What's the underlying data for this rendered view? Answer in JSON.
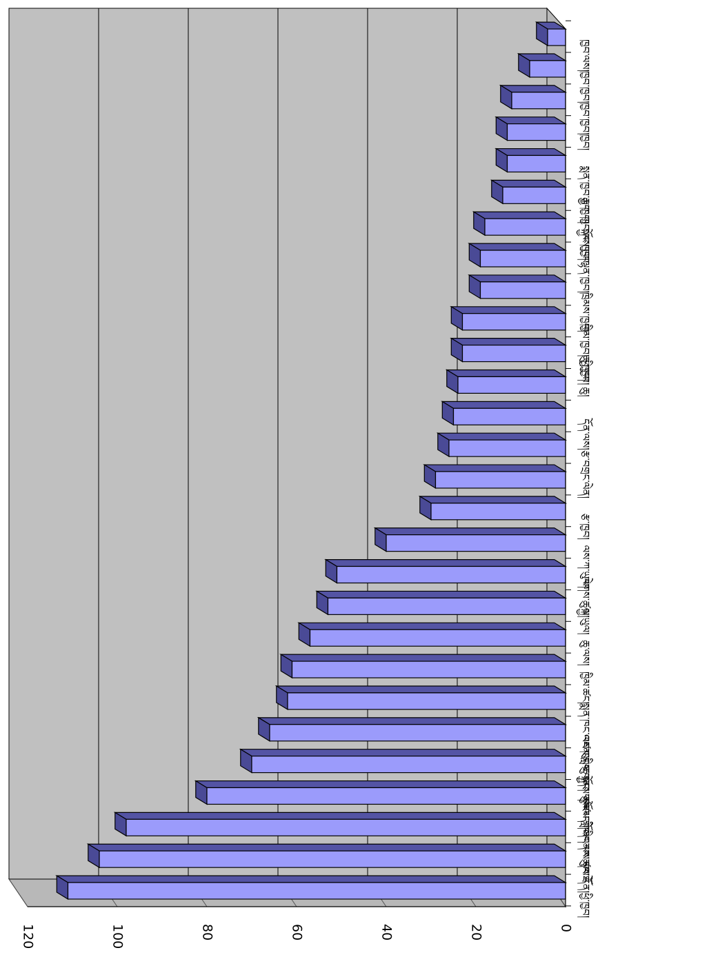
{
  "chart_data": {
    "type": "bar",
    "orientation": "horizontal-3d-rotated",
    "categories": [
      "ཕྱི་ཁྱབ།",
      "ལས་དོན།",
      "ཞིང་ལས་དང་",
      "འཛམ་གླིང་གནས་ཚུལ་ཐོ",
      "ཆུ་སྐྱོང།",
      "འཛམ་གླིང་གནས་ཚུལ་ དགོས",
      "སྨན་ཁང་ལས་ཁུངས་ དང་ གསོལ",
      "ཁྱིམ་ཚང།",
      "ཆུ་ལས།",
      "སྐྱ་ཡུལ།",
      "ལེགས་ཚུལ།",
      "ལས་ཀ་ཡུལ།",
      "རྩ་ཁྱབ།",
      "ལེན།",
      "རྩ་བགྲང་",
      "དོན་ལས།",
      "ཆུ།",
      "ཆུ་ཁྱབ།",
      "ཁྱིམ་ཁྱབ། ཕྱི་ཁྱབ།",
      "ཁྲིམས་ཁྱབ།",
      "ལྷན་ཁྱབ།",
      "སྐྱོང་ཁྱབ།",
      "རྩ་ཁྱབ།",
      "སྨན་ཁྱབ་རྒྱབ་ ཁྱབ་ལས་ཁྱབ",
      "ཁྱབ།",
      "ཁྱབ་ཁྱབ།",
      "ཁྱབ་ཁྱབ།",
      "ཁྱབ་ལས།"
    ],
    "values": [
      111,
      104,
      98,
      80,
      70,
      66,
      62,
      61,
      57,
      53,
      51,
      40,
      30,
      29,
      26,
      25,
      24,
      23,
      23,
      19,
      19,
      18,
      14,
      13,
      13,
      12,
      8,
      4
    ],
    "xlim": [
      0,
      120
    ],
    "ticks": [
      0,
      20,
      40,
      60,
      80,
      100,
      120
    ],
    "grid": true,
    "colors": {
      "bar_front": "#9b9bfb",
      "bar_top": "#5454a4",
      "bar_side": "#4a4a96",
      "bar_outline": "#000000",
      "wall": "#c0c0c0",
      "floor": "#b8b8b8",
      "gridline": "#000000"
    }
  }
}
